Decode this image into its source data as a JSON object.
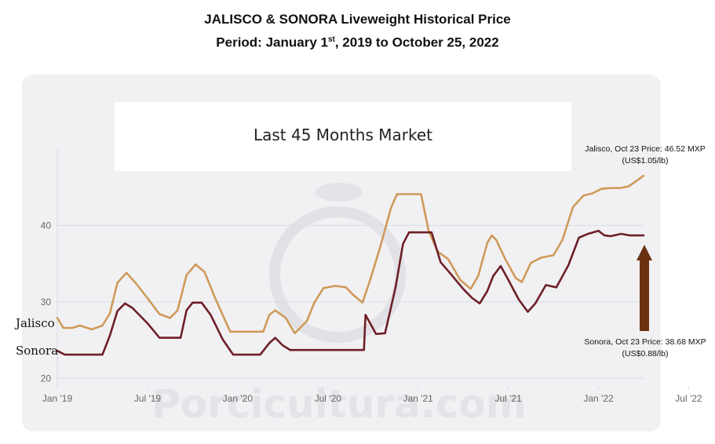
{
  "title": {
    "line1": "JALISCO & SONORA Liveweight Historical Price",
    "line2_pre": "Period: January 1",
    "line2_sup": "st",
    "line2_post": ", 2019 to October 25, 2022"
  },
  "banner": "Last 45 Months Market",
  "watermark": "Porcicultura.com",
  "annotations": {
    "jalisco_line1": "Jalisco, Oct 23 Price: 46.52 MXP",
    "jalisco_line2": "(US$1.05/lb)",
    "sonora_line1": "Sonora, Oct 23 Price: 38.68 MXP",
    "sonora_line2": "(US$0.88/lb)"
  },
  "colors": {
    "jalisco": "#cf9a5a",
    "sonora": "#6e1f28",
    "arrow": "#6b3212",
    "grid": "#d9dce6",
    "tick": "#666666"
  },
  "chart_data": {
    "type": "line",
    "title": "JALISCO & SONORA Liveweight Historical Price",
    "subtitle": "Period: January 1st, 2019 to October 25, 2022",
    "xlabel": "",
    "ylabel": "",
    "x_ticks": [
      "Jan '19",
      "Jul '19",
      "Jan '20",
      "Jul '20",
      "Jan '21",
      "Jul '21",
      "Jan '22",
      "Jul '22"
    ],
    "y_ticks": [
      20,
      30,
      40
    ],
    "ylim": [
      19,
      50
    ],
    "grid": "horizontal",
    "series": [
      {
        "name": "Jalisco",
        "color": "#cf9a5a",
        "points": [
          [
            0,
            27.9
          ],
          [
            0.4,
            26.6
          ],
          [
            1,
            26.6
          ],
          [
            1.5,
            26.9
          ],
          [
            2.3,
            26.4
          ],
          [
            3,
            26.9
          ],
          [
            3.5,
            28.5
          ],
          [
            4,
            32.5
          ],
          [
            4.6,
            33.8
          ],
          [
            5.2,
            32.5
          ],
          [
            6,
            30.5
          ],
          [
            6.8,
            28.4
          ],
          [
            7.5,
            27.9
          ],
          [
            8,
            28.9
          ],
          [
            8.6,
            33.5
          ],
          [
            9.2,
            34.9
          ],
          [
            9.8,
            33.9
          ],
          [
            10.5,
            30.5
          ],
          [
            11.5,
            26.1
          ],
          [
            13,
            26.1
          ],
          [
            13.7,
            26.1
          ],
          [
            14.1,
            28.3
          ],
          [
            14.5,
            28.9
          ],
          [
            15.2,
            27.9
          ],
          [
            15.8,
            25.9
          ],
          [
            16.6,
            27.5
          ],
          [
            17.1,
            29.9
          ],
          [
            17.7,
            31.8
          ],
          [
            18.5,
            32.1
          ],
          [
            19.2,
            31.9
          ],
          [
            19.7,
            30.9
          ],
          [
            20.3,
            29.9
          ],
          [
            20.8,
            32.8
          ],
          [
            21.5,
            37.3
          ],
          [
            22.2,
            42.3
          ],
          [
            22.6,
            44.1
          ],
          [
            24.2,
            44.1
          ],
          [
            24.7,
            39.3
          ],
          [
            25.3,
            36.6
          ],
          [
            26,
            35.6
          ],
          [
            26.8,
            32.9
          ],
          [
            27.5,
            31.7
          ],
          [
            28,
            33.4
          ],
          [
            28.6,
            37.7
          ],
          [
            28.9,
            38.7
          ],
          [
            29.2,
            38.1
          ],
          [
            29.8,
            35.6
          ],
          [
            30.5,
            33.1
          ],
          [
            30.9,
            32.6
          ],
          [
            31.5,
            35.1
          ],
          [
            32.2,
            35.8
          ],
          [
            33,
            36.1
          ],
          [
            33.6,
            38.1
          ],
          [
            34.3,
            42.4
          ],
          [
            35,
            43.9
          ],
          [
            35.6,
            44.2
          ],
          [
            36.2,
            44.8
          ],
          [
            36.8,
            44.9
          ],
          [
            37.4,
            44.9
          ],
          [
            38,
            45.1
          ],
          [
            38.5,
            45.8
          ],
          [
            39,
            46.5
          ]
        ]
      },
      {
        "name": "Sonora",
        "color": "#6e1f28",
        "points": [
          [
            0,
            23.6
          ],
          [
            0.5,
            23.1
          ],
          [
            1.5,
            23.1
          ],
          [
            3,
            23.1
          ],
          [
            3.5,
            25.6
          ],
          [
            4,
            28.8
          ],
          [
            4.5,
            29.8
          ],
          [
            5,
            29.2
          ],
          [
            6,
            27.2
          ],
          [
            6.8,
            25.3
          ],
          [
            8.2,
            25.3
          ],
          [
            8.6,
            28.9
          ],
          [
            9,
            29.9
          ],
          [
            9.6,
            29.9
          ],
          [
            10.2,
            28.3
          ],
          [
            11,
            25.1
          ],
          [
            11.7,
            23.1
          ],
          [
            13.5,
            23.1
          ],
          [
            14.1,
            24.6
          ],
          [
            14.5,
            25.3
          ],
          [
            15,
            24.3
          ],
          [
            15.5,
            23.7
          ],
          [
            17,
            23.7
          ],
          [
            20.4,
            23.7
          ],
          [
            20.5,
            28.3
          ],
          [
            21.2,
            25.8
          ],
          [
            21.8,
            25.9
          ],
          [
            22.5,
            31.9
          ],
          [
            23,
            37.6
          ],
          [
            23.4,
            39.1
          ],
          [
            24.9,
            39.1
          ],
          [
            25.5,
            35.2
          ],
          [
            26.2,
            33.6
          ],
          [
            27,
            31.7
          ],
          [
            27.6,
            30.5
          ],
          [
            28.1,
            29.8
          ],
          [
            28.6,
            31.4
          ],
          [
            29,
            33.4
          ],
          [
            29.5,
            34.7
          ],
          [
            30,
            32.9
          ],
          [
            30.7,
            30.3
          ],
          [
            31.3,
            28.7
          ],
          [
            31.8,
            29.8
          ],
          [
            32.5,
            32.2
          ],
          [
            33.2,
            31.9
          ],
          [
            34,
            34.8
          ],
          [
            34.7,
            38.4
          ],
          [
            35.3,
            38.9
          ],
          [
            36,
            39.3
          ],
          [
            36.4,
            38.7
          ],
          [
            36.8,
            38.6
          ],
          [
            37.5,
            38.9
          ],
          [
            38.1,
            38.7
          ],
          [
            39,
            38.7
          ]
        ]
      }
    ]
  }
}
